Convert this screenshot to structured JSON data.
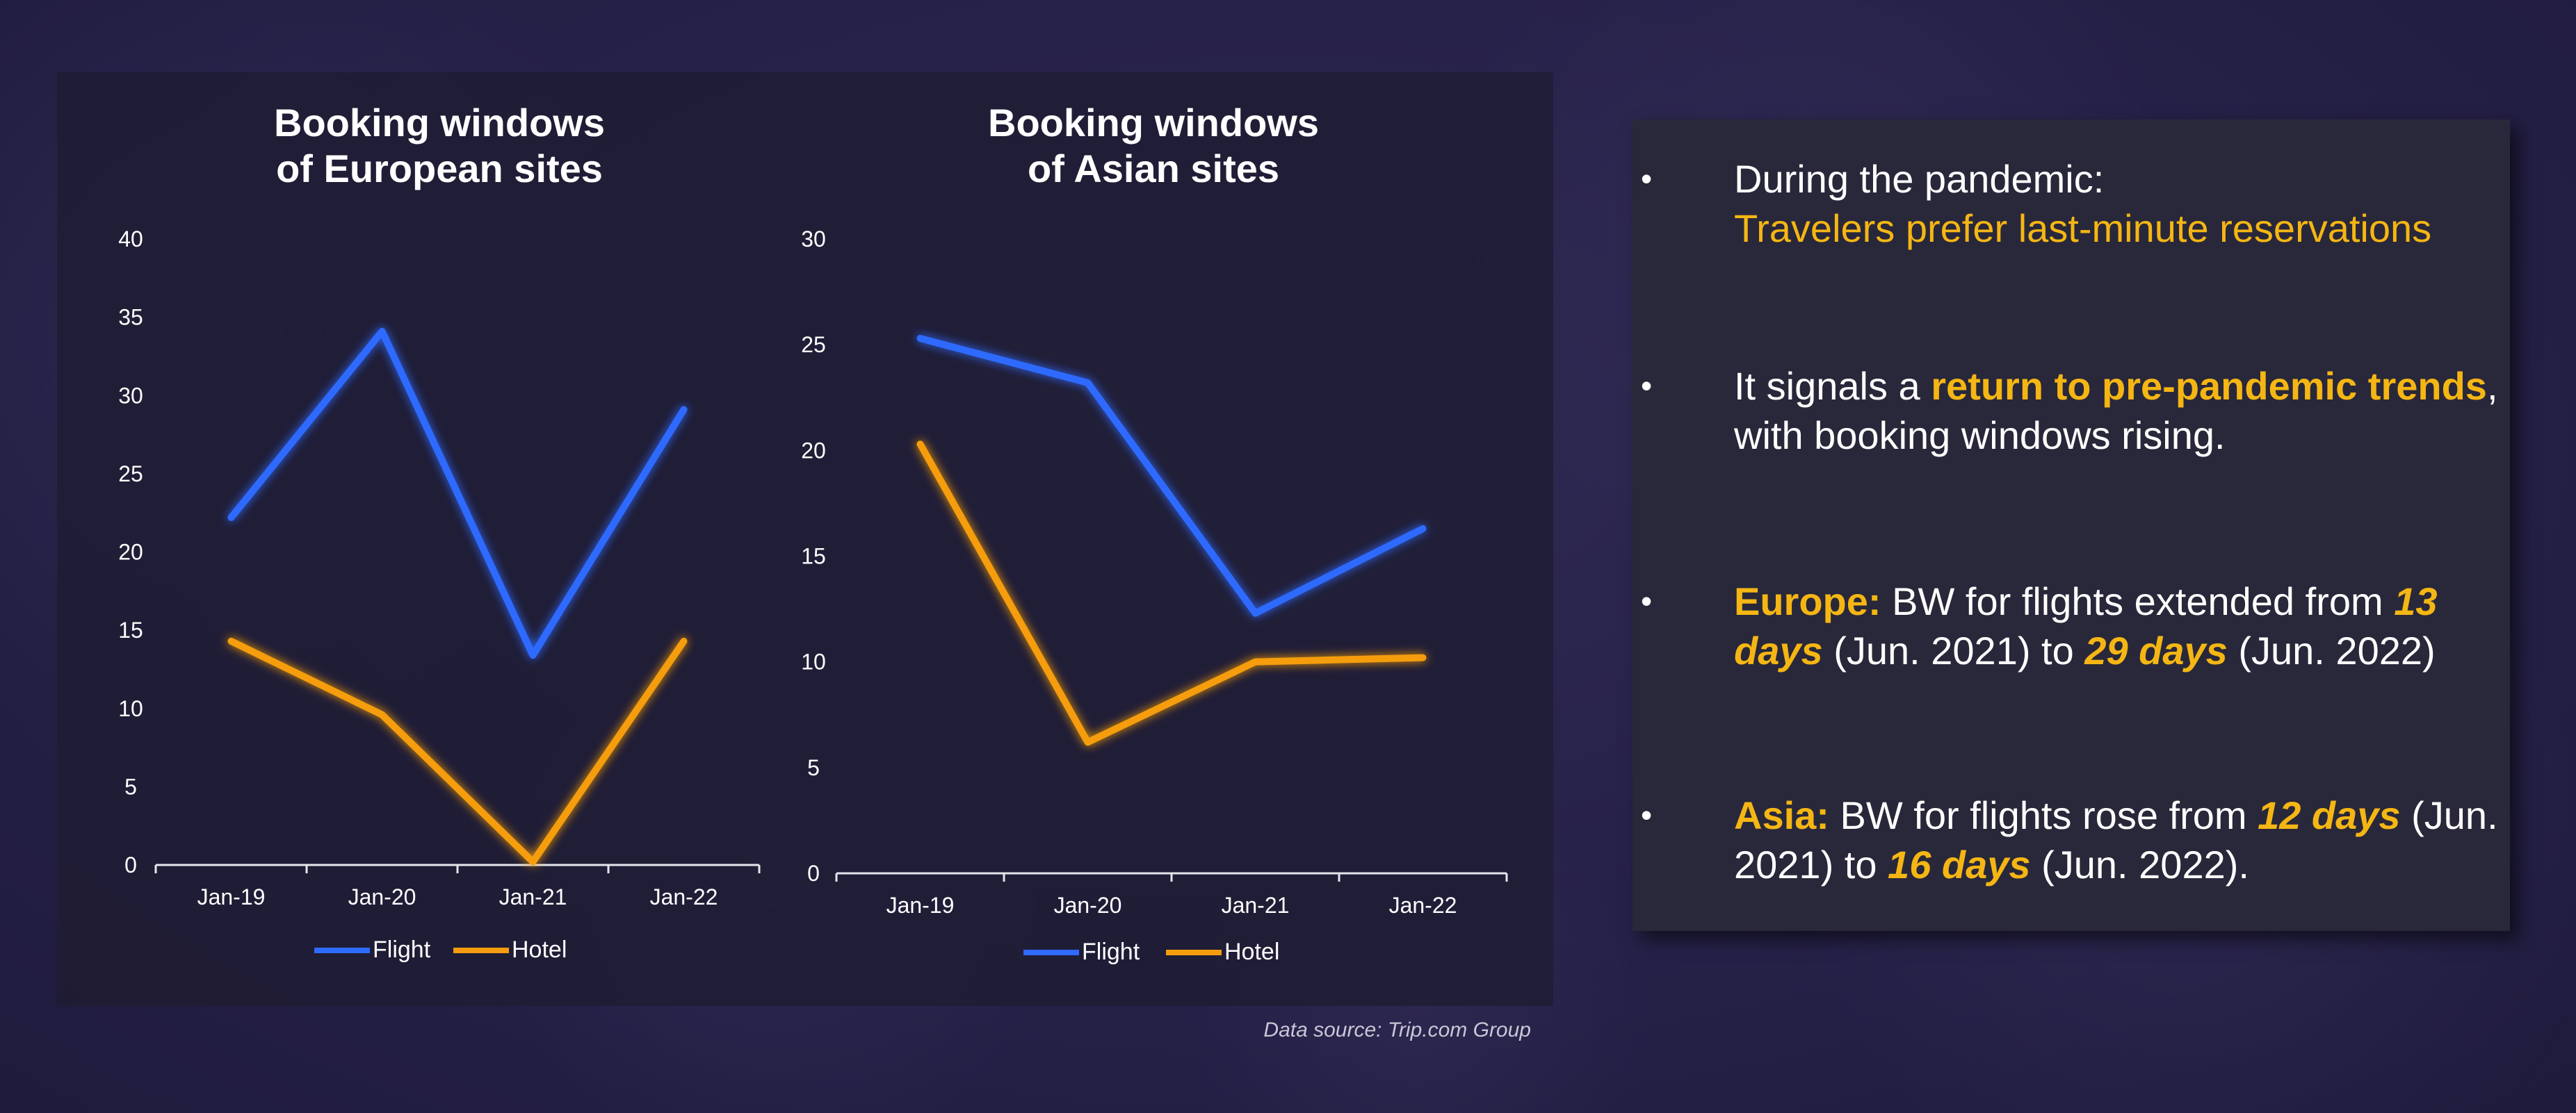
{
  "chart_data": [
    {
      "type": "line",
      "title": "Booking windows of European sites",
      "title_lines": [
        "Booking windows",
        "of European sites"
      ],
      "categories": [
        "Jan-19",
        "Jan-20",
        "Jan-21",
        "Jan-22"
      ],
      "series": [
        {
          "name": "Flight",
          "values": [
            22.2,
            34.1,
            13.4,
            29.1
          ],
          "color": "#2f6bff"
        },
        {
          "name": "Hotel",
          "values": [
            14.3,
            9.6,
            0.2,
            14.3
          ],
          "color": "#f59d0e"
        }
      ],
      "ylim": [
        0,
        40
      ],
      "yticks": [
        0,
        5,
        10,
        15,
        20,
        25,
        30,
        35,
        40
      ],
      "legend": "bottom",
      "grid": false
    },
    {
      "type": "line",
      "title": "Booking windows of Asian sites",
      "title_lines": [
        "Booking windows",
        "of Asian sites"
      ],
      "categories": [
        "Jan-19",
        "Jan-20",
        "Jan-21",
        "Jan-22"
      ],
      "series": [
        {
          "name": "Flight",
          "values": [
            25.3,
            23.2,
            12.3,
            16.3
          ],
          "color": "#2f6bff"
        },
        {
          "name": "Hotel",
          "values": [
            20.3,
            6.2,
            10.0,
            10.2
          ],
          "color": "#f59d0e"
        }
      ],
      "ylim": [
        0,
        30
      ],
      "yticks": [
        0,
        5,
        10,
        15,
        20,
        25,
        30
      ],
      "legend": "bottom",
      "grid": false
    }
  ],
  "source_note": "Data source: Trip.com Group",
  "colors": {
    "accent": "#f5b614",
    "flight": "#2f6bff",
    "hotel": "#f59d0e"
  },
  "bullets": {
    "b1": {
      "line1": "During  the pandemic:",
      "line2": "Travelers prefer last-minute reservations"
    },
    "b2": {
      "t1": "It signals a ",
      "h1": "return to pre-pandemic trends",
      "t2": ", with booking windows rising."
    },
    "b3": {
      "h1": "Europe:",
      "t1": "  BW for flights extended from ",
      "h2": "13 days",
      "t2": " (Jun. 2021) to ",
      "h3": "29 days",
      "t3": " (Jun. 2022)"
    },
    "b4": {
      "h1": "Asia:",
      "t1": " BW for flights rose from ",
      "h2": "12 days",
      "t2": " (Jun. 2021) to ",
      "h3": "16 days",
      "t3": " (Jun. 2022)."
    }
  }
}
